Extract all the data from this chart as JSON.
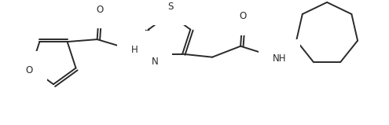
{
  "background_color": "#ffffff",
  "line_color": "#2a2a2a",
  "line_width": 1.4,
  "font_size": 8.5,
  "fig_width": 4.95,
  "fig_height": 1.59,
  "xlim": [
    0,
    495
  ],
  "ylim": [
    0,
    159
  ]
}
